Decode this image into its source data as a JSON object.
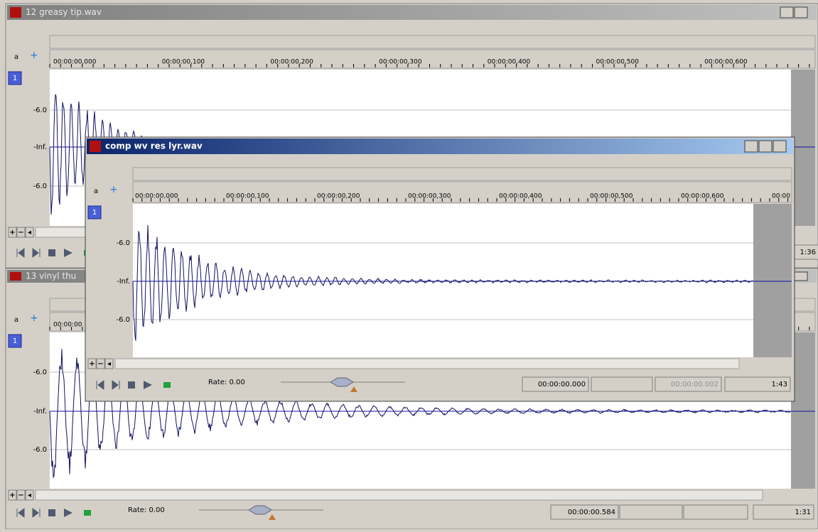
{
  "windows": [
    {
      "title": "12 greasy tip.wav",
      "channel": "1",
      "ruler": [
        "00:00:00,000",
        "00:00:00,100",
        "00:00:00,200",
        "00:00:00,300",
        "00:00:00,400",
        "00:00:00,500",
        "00:00:00,600"
      ],
      "levels": [
        "-6.0",
        "-Inf.",
        "-6.0"
      ],
      "fields": [
        "1:36"
      ]
    },
    {
      "title": "13 vinyl thu",
      "channel": "1",
      "ruler": [
        "00:00:00"
      ],
      "levels": [
        "-6.0",
        "-Inf.",
        "-6.0"
      ],
      "rate": "Rate: 0.00",
      "fields": [
        "00:00:00.584",
        "1:31"
      ]
    },
    {
      "title": "comp wv res lyr.wav",
      "channel": "1",
      "ruler": [
        "00:00:00,000",
        "00:00:00,100",
        "00:00:00,200",
        "00:00:00,300",
        "00:00:00,400",
        "00:00:00,500",
        "00:00:00,600",
        "00:00"
      ],
      "levels": [
        "-6.0",
        "-Inf.",
        "-6.0"
      ],
      "rate": "Rate: 0.00",
      "fields": [
        "00:00:00.000",
        "00:00:00.002",
        "1:43"
      ]
    }
  ]
}
